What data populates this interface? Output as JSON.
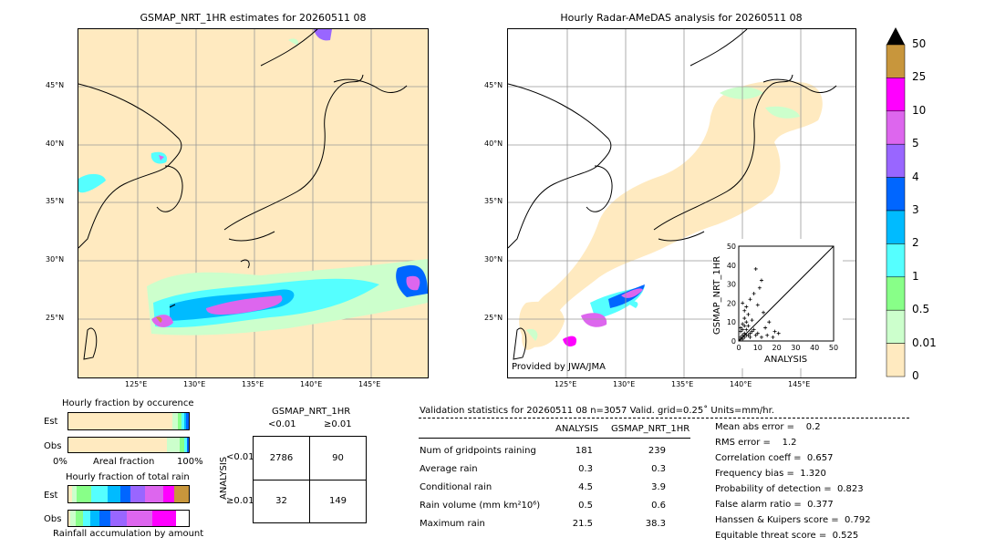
{
  "left_map": {
    "title": "GSMAP_NRT_1HR estimates for 20260511 08",
    "lat_labels": [
      "45°N",
      "40°N",
      "35°N",
      "30°N",
      "25°N"
    ],
    "lon_labels": [
      "125°E",
      "130°E",
      "135°E",
      "140°E",
      "145°E"
    ]
  },
  "right_map": {
    "title": "Hourly Radar-AMeDAS analysis for 20260511 08",
    "lat_labels": [
      "45°N",
      "40°N",
      "35°N",
      "30°N",
      "25°N"
    ],
    "lon_labels": [
      "125°E",
      "130°E",
      "135°E",
      "140°E",
      "145°E"
    ],
    "credit": "Provided by JWA/JMA"
  },
  "colorbar": {
    "labels": [
      "50",
      "25",
      "10",
      "5",
      "4",
      "3",
      "2",
      "1",
      "0.5",
      "0.01",
      "0"
    ],
    "colors": [
      "#c8963c",
      "#ff00ff",
      "#dd66ee",
      "#9966ff",
      "#0066ff",
      "#00bbff",
      "#55ffff",
      "#88ff88",
      "#ccffcc",
      "#ffeac0"
    ]
  },
  "fractions": {
    "occurrence_title": "Hourly fraction by occurence",
    "total_title": "Hourly fraction of total rain",
    "est": "Est",
    "obs": "Obs",
    "x_min": "0%",
    "x_label": "Areal fraction",
    "x_max": "100%",
    "accum_label": "Rainfall accumulation by amount"
  },
  "contingency": {
    "title": "GSMAP_NRT_1HR",
    "col_lt": "<0.01",
    "col_ge": "≥0.01",
    "row_lt": "<0.01",
    "row_ge": "≥0.01",
    "ylabel": "ANALYSIS",
    "a": "2786",
    "b": "90",
    "c": "32",
    "d": "149"
  },
  "stats": {
    "header": "Validation statistics for 20260511 08  n=3057 Valid. grid=0.25˚ Units=mm/hr.",
    "col1": "ANALYSIS",
    "col2": "GSMAP_NRT_1HR",
    "rows": [
      {
        "label": "Num of gridpoints raining",
        "a": "181",
        "g": "239"
      },
      {
        "label": "Average rain",
        "a": "0.3",
        "g": "0.3"
      },
      {
        "label": "Conditional rain",
        "a": "4.5",
        "g": "3.9"
      },
      {
        "label": "Rain volume (mm km²10⁶)",
        "a": "0.5",
        "g": "0.6"
      },
      {
        "label": "Maximum rain",
        "a": "21.5",
        "g": "38.3"
      }
    ],
    "scores": [
      "Mean abs error =    0.2",
      "RMS error =    1.2",
      "Correlation coeff =  0.657",
      "Frequency bias =  1.320",
      "Probability of detection =  0.823",
      "False alarm ratio =  0.377",
      "Hanssen & Kuipers score =  0.792",
      "Equitable threat score =  0.525"
    ]
  },
  "chart_data": {
    "type": "scatter",
    "xlabel": "ANALYSIS",
    "ylabel": "GSMAP_NRT_1HR",
    "xlim": [
      0,
      50
    ],
    "ylim": [
      0,
      50
    ],
    "ticks": [
      "0",
      "10",
      "20",
      "30",
      "40",
      "50"
    ],
    "points": [
      [
        1,
        2
      ],
      [
        2,
        1
      ],
      [
        3,
        4
      ],
      [
        2,
        6
      ],
      [
        4,
        3
      ],
      [
        5,
        8
      ],
      [
        1,
        5
      ],
      [
        3,
        2
      ],
      [
        6,
        4
      ],
      [
        2,
        3
      ],
      [
        4,
        6
      ],
      [
        7,
        5
      ],
      [
        1,
        1
      ],
      [
        3,
        8
      ],
      [
        5,
        3
      ],
      [
        8,
        6
      ],
      [
        2,
        9
      ],
      [
        6,
        2
      ],
      [
        10,
        4
      ],
      [
        4,
        10
      ],
      [
        9,
        3
      ],
      [
        12,
        2
      ],
      [
        15,
        3
      ],
      [
        18,
        2
      ],
      [
        3,
        12
      ],
      [
        5,
        14
      ],
      [
        7,
        11
      ],
      [
        2,
        20
      ],
      [
        4,
        18
      ],
      [
        6,
        22
      ],
      [
        8,
        25
      ],
      [
        11,
        28
      ],
      [
        12,
        32
      ],
      [
        9,
        38
      ],
      [
        10,
        19
      ],
      [
        14,
        7
      ],
      [
        16,
        10
      ],
      [
        19,
        5
      ],
      [
        21,
        4
      ],
      [
        13,
        15
      ],
      [
        3,
        16
      ],
      [
        1,
        7
      ]
    ]
  }
}
